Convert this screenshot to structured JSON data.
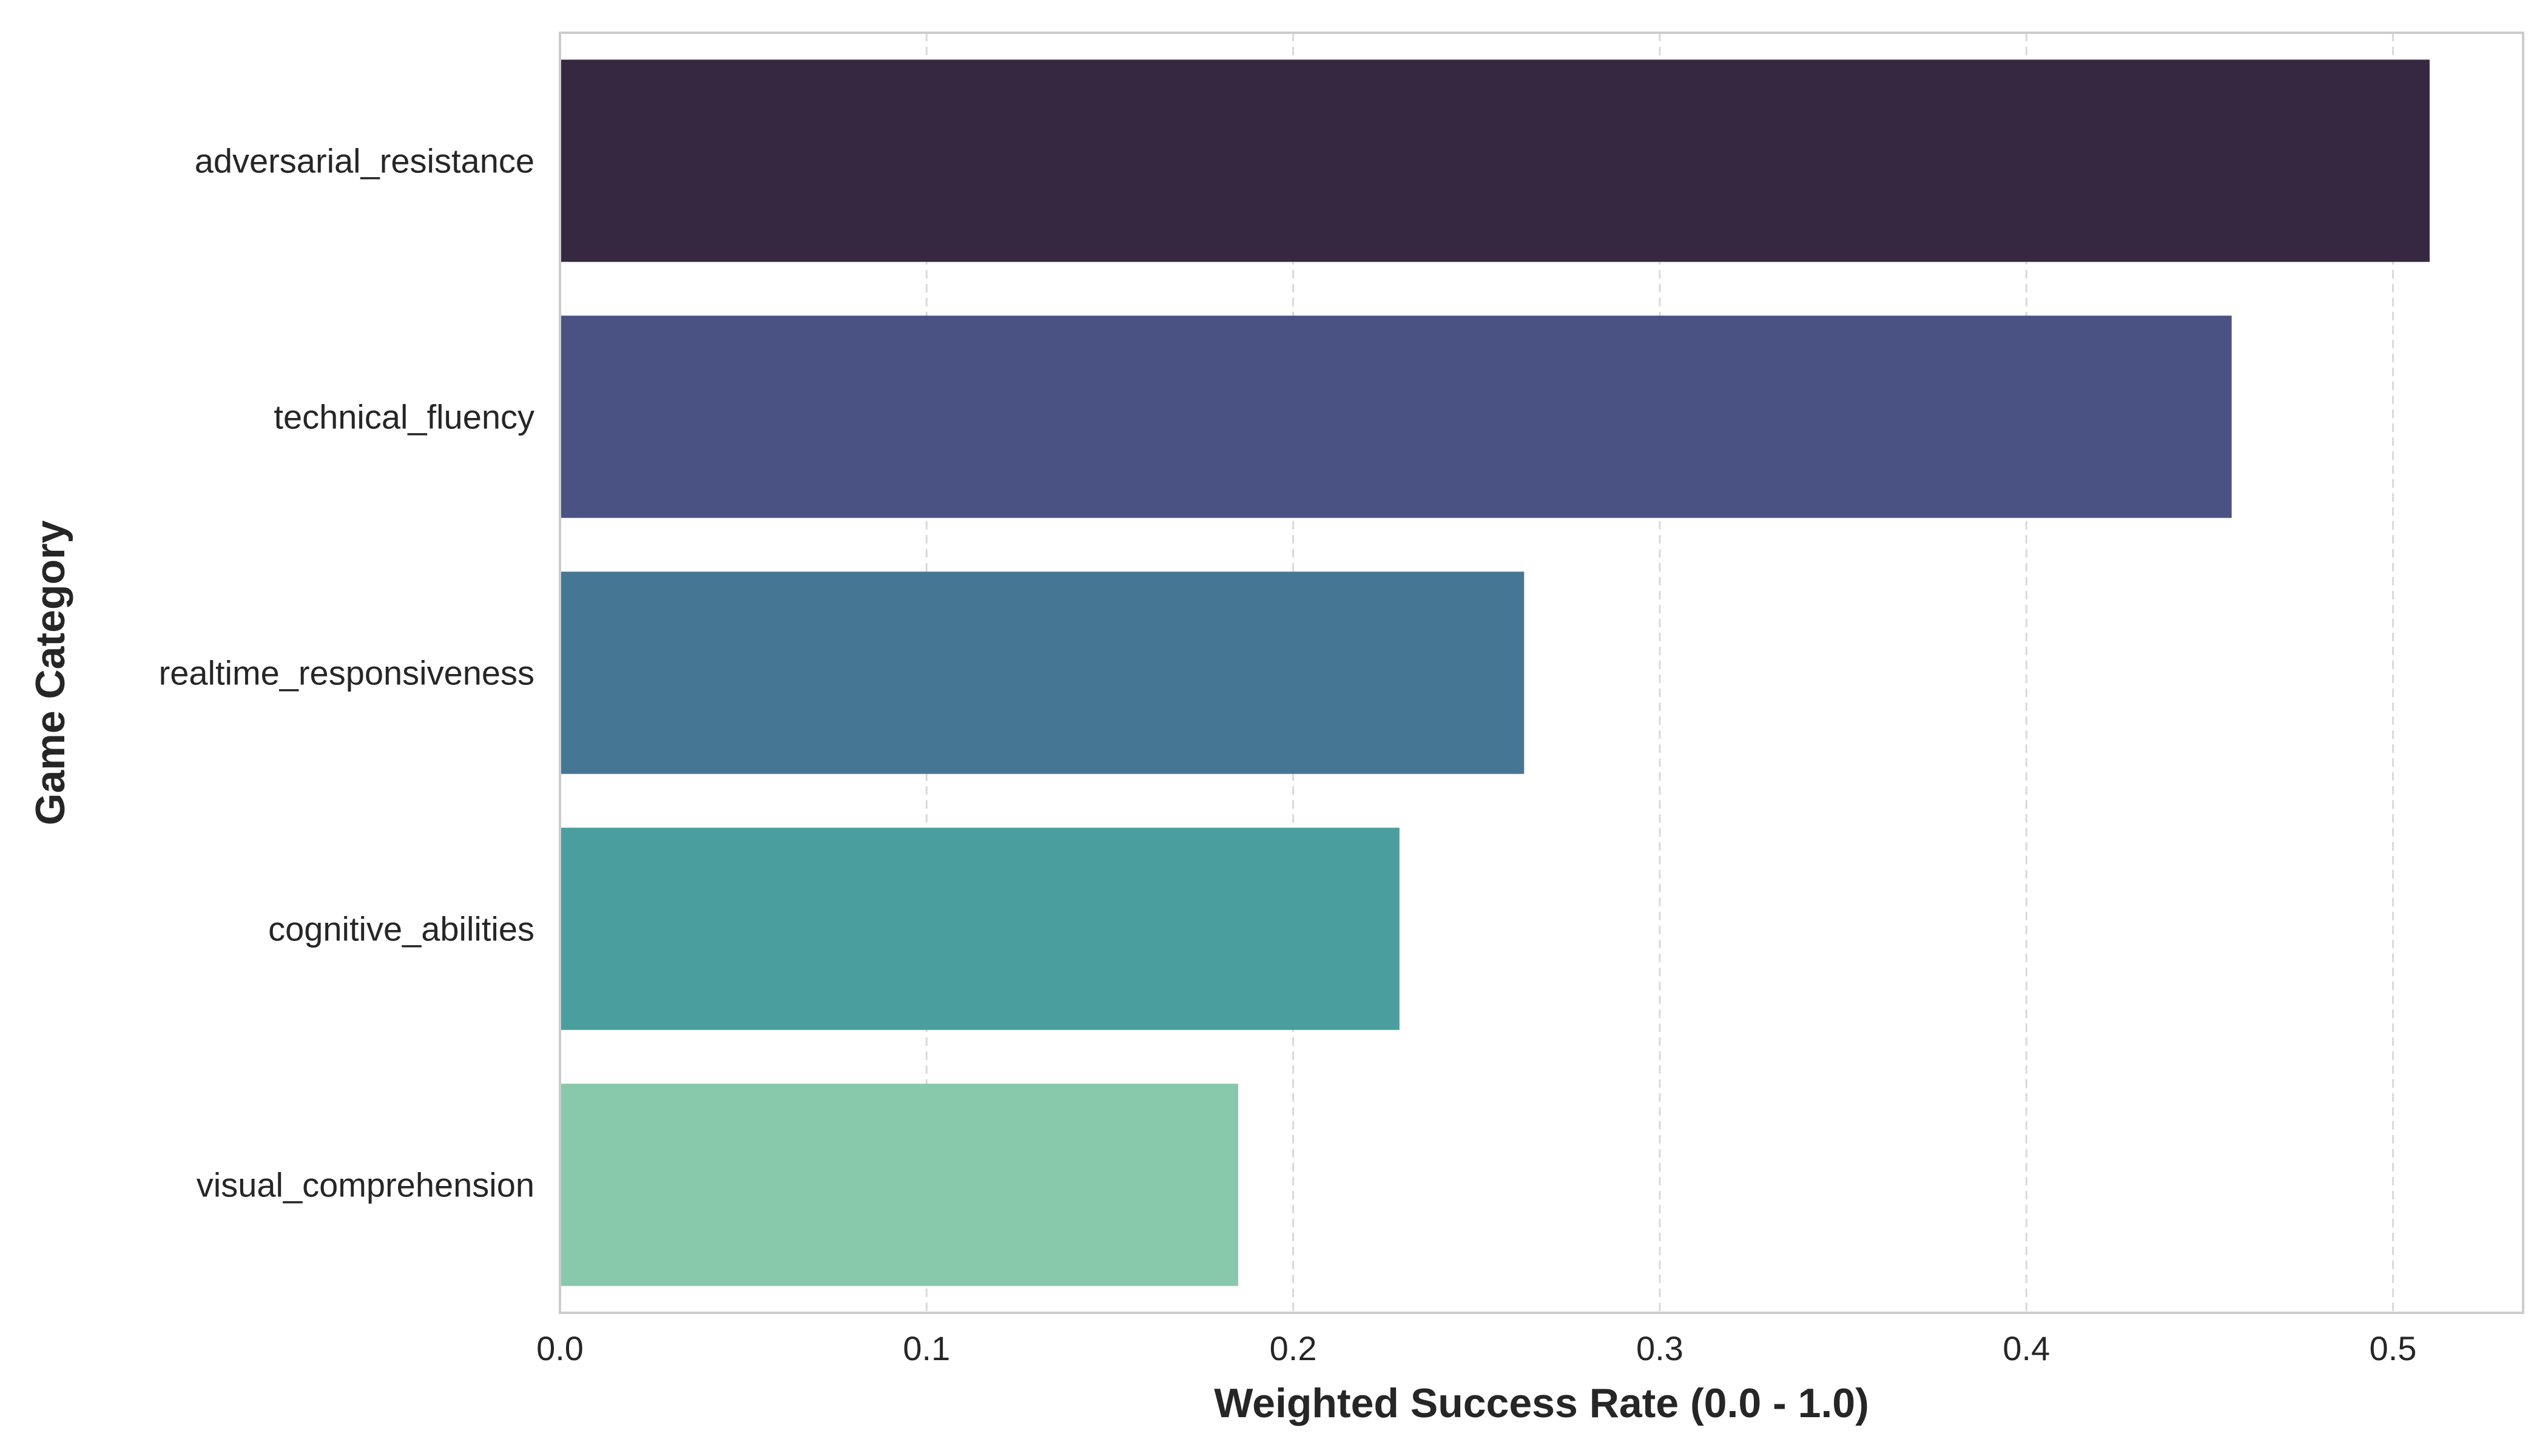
{
  "chart_data": {
    "type": "bar",
    "orientation": "horizontal",
    "categories": [
      "adversarial_resistance",
      "technical_fluency",
      "realtime_responsiveness",
      "cognitive_abilities",
      "visual_comprehension"
    ],
    "values": [
      0.51,
      0.456,
      0.263,
      0.229,
      0.185
    ],
    "colors": [
      "#372842",
      "#4a5284",
      "#457794",
      "#4a9e9e",
      "#87c9aa"
    ],
    "xlabel": "Weighted Success Rate (0.0 - 1.0)",
    "ylabel": "Game Category",
    "xlim": [
      0,
      0.5355
    ],
    "xticks": [
      "0.0",
      "0.1",
      "0.2",
      "0.3",
      "0.4",
      "0.5"
    ],
    "grid": "x, dashed",
    "legend": "none"
  }
}
